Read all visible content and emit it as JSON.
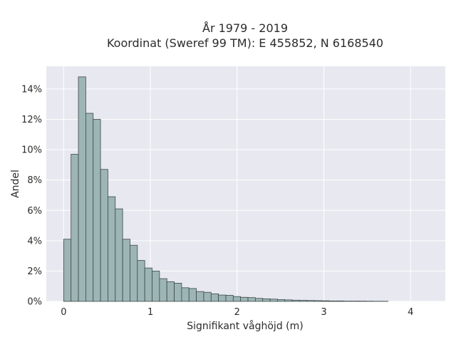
{
  "chart_data": {
    "type": "bar",
    "title_lines": [
      "År 1979 - 2019",
      "Koordinat (Sweref 99 TM): E 455852, N 6168540"
    ],
    "xlabel": "Signifikant våghöjd (m)",
    "ylabel": "Andel",
    "xlim": [
      -0.2,
      4.4
    ],
    "ylim": [
      0,
      15.5
    ],
    "x_ticks": [
      0,
      1,
      2,
      3,
      4
    ],
    "x_tick_labels": [
      "0",
      "1",
      "2",
      "3",
      "4"
    ],
    "y_ticks": [
      0,
      2,
      4,
      6,
      8,
      10,
      12,
      14
    ],
    "y_tick_labels": [
      "0%",
      "2%",
      "4%",
      "6%",
      "8%",
      "10%",
      "12%",
      "14%"
    ],
    "bin_width": 0.085,
    "bin_start": 0.0,
    "values": [
      4.1,
      9.7,
      14.8,
      12.4,
      12.0,
      8.7,
      6.9,
      6.1,
      4.1,
      3.7,
      2.7,
      2.2,
      2.0,
      1.5,
      1.3,
      1.2,
      0.9,
      0.85,
      0.65,
      0.6,
      0.5,
      0.42,
      0.4,
      0.32,
      0.27,
      0.25,
      0.2,
      0.17,
      0.15,
      0.12,
      0.1,
      0.08,
      0.07,
      0.06,
      0.05,
      0.04,
      0.03,
      0.03,
      0.02,
      0.02,
      0.02,
      0.015,
      0.01,
      0.01
    ],
    "grid": true,
    "colors": {
      "bar_fill": "#9db5b5",
      "bar_stroke": "#3c4a4a",
      "plot_background": "#e8e8f0",
      "grid": "#ffffff"
    }
  }
}
